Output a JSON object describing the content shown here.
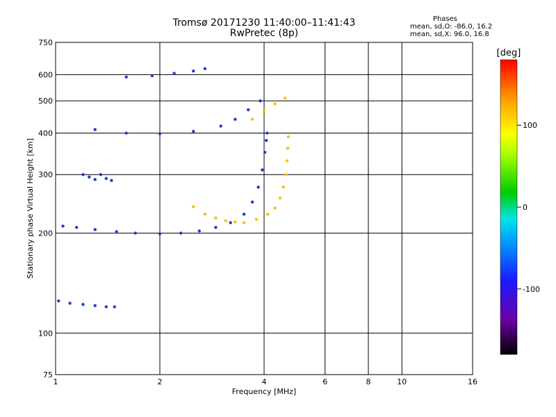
{
  "title": {
    "line1": "Tromsø 20171230 11:40:00–11:41:43",
    "line2": "RwPretec (8p)"
  },
  "phase_stats": {
    "title": "Phases",
    "line_o": "mean, sd,O: -86.0, 16.2",
    "line_x": "mean, sd,X:  96.0, 16.8"
  },
  "colorbar": {
    "label": "[deg]",
    "ticks": [
      "100",
      "0",
      "-100"
    ],
    "tick_values": [
      100,
      0,
      -100
    ],
    "range": [
      -180,
      180
    ]
  },
  "chart_data": {
    "type": "scatter",
    "xlabel": "Frequency [MHz]",
    "ylabel": "Stationary phase Virtual Height [km]",
    "x_scale": "log",
    "y_scale": "log",
    "xlim": [
      1,
      16
    ],
    "ylim": [
      75,
      750
    ],
    "x_ticks": [
      1,
      2,
      4,
      6,
      8,
      10,
      16
    ],
    "x_tick_labels": [
      "1",
      "2",
      "4",
      "6",
      "8",
      "10",
      "16"
    ],
    "y_ticks": [
      75,
      100,
      200,
      300,
      400,
      500,
      600,
      750
    ],
    "y_tick_labels": [
      "75",
      "100",
      "200",
      "300",
      "400",
      "500",
      "600",
      "750"
    ],
    "grid": true,
    "color_by": "phase [deg]",
    "traces": [
      {
        "kind": "O-mode F-region",
        "phase": -100,
        "points": [
          [
            1.05,
            210
          ],
          [
            1.15,
            208
          ],
          [
            1.3,
            205
          ],
          [
            1.5,
            202
          ],
          [
            1.7,
            200
          ],
          [
            2.0,
            199
          ],
          [
            2.3,
            200
          ],
          [
            2.6,
            203
          ],
          [
            2.9,
            208
          ],
          [
            3.2,
            215
          ],
          [
            3.5,
            228
          ],
          [
            3.7,
            248
          ],
          [
            3.85,
            275
          ],
          [
            3.95,
            310
          ],
          [
            4.02,
            350
          ],
          [
            4.06,
            380
          ],
          [
            4.08,
            400
          ]
        ]
      },
      {
        "kind": "X-mode F-region",
        "phase": 100,
        "points": [
          [
            3.5,
            215
          ],
          [
            3.8,
            220
          ],
          [
            4.1,
            228
          ],
          [
            4.3,
            238
          ],
          [
            4.45,
            255
          ],
          [
            4.55,
            275
          ],
          [
            4.62,
            300
          ],
          [
            4.66,
            330
          ],
          [
            4.68,
            360
          ],
          [
            4.7,
            390
          ]
        ]
      },
      {
        "kind": "O-mode 2-hop",
        "phase": -100,
        "points": [
          [
            1.3,
            410
          ],
          [
            1.6,
            400
          ],
          [
            2.0,
            398
          ],
          [
            2.5,
            405
          ],
          [
            3.0,
            420
          ],
          [
            3.3,
            440
          ],
          [
            3.6,
            470
          ],
          [
            3.9,
            500
          ]
        ]
      },
      {
        "kind": "X-mode 2-hop",
        "phase": 100,
        "points": [
          [
            3.7,
            440
          ],
          [
            4.0,
            465
          ],
          [
            4.3,
            490
          ],
          [
            4.6,
            510
          ]
        ]
      },
      {
        "kind": "O-mode 3-hop",
        "phase": -100,
        "points": [
          [
            1.6,
            590
          ],
          [
            1.9,
            595
          ],
          [
            2.2,
            605
          ],
          [
            2.5,
            615
          ],
          [
            2.7,
            625
          ]
        ]
      },
      {
        "kind": "X-mode F-region low",
        "phase": 100,
        "points": [
          [
            2.5,
            240
          ],
          [
            2.7,
            228
          ],
          [
            2.9,
            222
          ],
          [
            3.1,
            218
          ],
          [
            3.3,
            216
          ]
        ]
      },
      {
        "kind": "E-region",
        "phase": -100,
        "points": [
          [
            1.02,
            125
          ],
          [
            1.1,
            123
          ],
          [
            1.2,
            122
          ],
          [
            1.3,
            121
          ],
          [
            1.4,
            120
          ],
          [
            1.48,
            120
          ]
        ]
      },
      {
        "kind": "sporadic layer",
        "phase": -100,
        "points": [
          [
            1.2,
            300
          ],
          [
            1.25,
            295
          ],
          [
            1.3,
            290
          ],
          [
            1.35,
            300
          ],
          [
            1.4,
            292
          ],
          [
            1.45,
            288
          ]
        ]
      }
    ]
  }
}
